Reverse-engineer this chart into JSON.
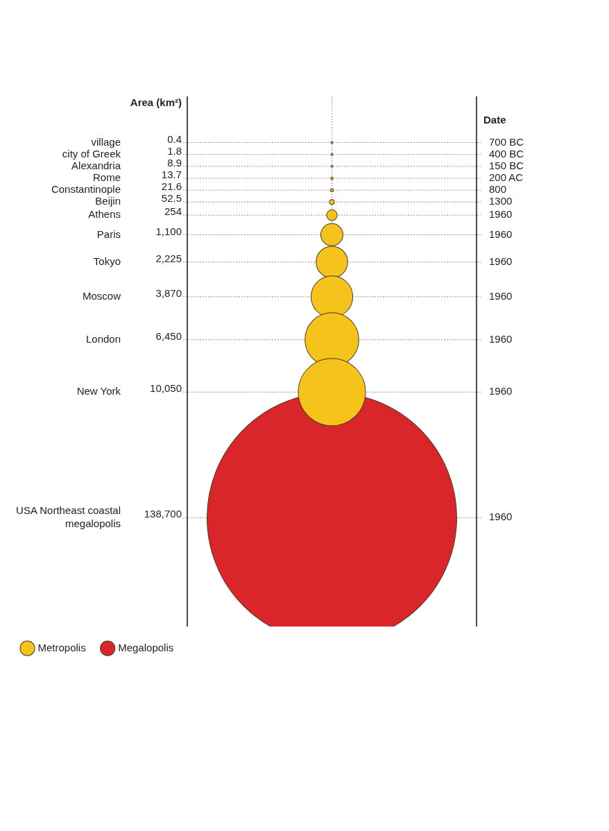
{
  "chart_data": {
    "type": "other",
    "categories": [
      "village",
      "city of Greek",
      "Alexandria",
      "Rome",
      "Constantinople",
      "Beijin",
      "Athens",
      "Paris",
      "Tokyo",
      "Moscow",
      "London",
      "New York",
      "USA Northeast coastal megalopolis"
    ],
    "y2_categories": [
      "700 BC",
      "400 BC",
      "150 BC",
      "200 AC",
      "800",
      "1300",
      "1960",
      "1960",
      "1960",
      "1960",
      "1960",
      "1960",
      "1960"
    ],
    "ylabel": "Area (km²)",
    "y2label": "Date",
    "series": [
      {
        "name": "Metropolis",
        "color": "#f6c21c",
        "values": [
          0.4,
          1.8,
          8.9,
          13.7,
          21.6,
          52.5,
          254,
          1100,
          2225,
          3870,
          6450,
          10050,
          null
        ],
        "value_labels": [
          "0.4",
          "1.8",
          "8.9",
          "13.7",
          "21.6",
          "52.5",
          "254",
          "1,100",
          "2,225",
          "3,870",
          "6,450",
          "10,050",
          null
        ]
      },
      {
        "name": "Megalopolis",
        "color": "#d8262a",
        "values": [
          null,
          null,
          null,
          null,
          null,
          null,
          null,
          null,
          null,
          null,
          null,
          null,
          138700
        ],
        "value_labels": [
          null,
          null,
          null,
          null,
          null,
          null,
          null,
          null,
          null,
          null,
          null,
          null,
          "138,700"
        ]
      }
    ],
    "legend": "bottom left"
  }
}
